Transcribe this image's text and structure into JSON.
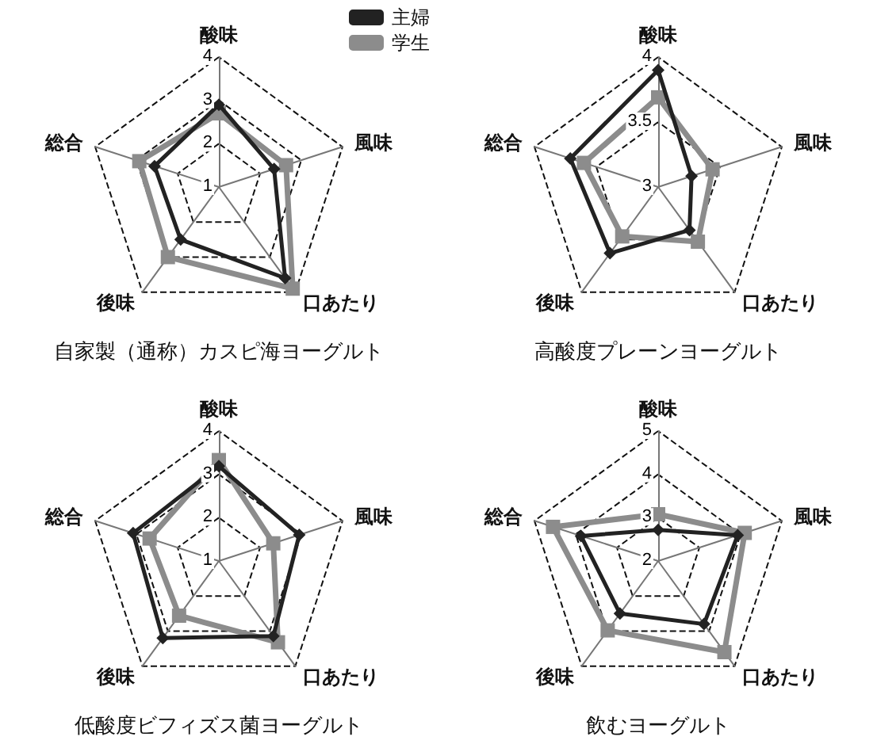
{
  "chart_data": [
    {
      "type": "radar",
      "title": "自家製（通称）カスピ海ヨーグルト",
      "categories": [
        "酸味",
        "風味",
        "口あたり",
        "後味",
        "総合"
      ],
      "ylim": [
        1,
        4
      ],
      "yticks": [
        1,
        2,
        3,
        4
      ],
      "legend": "top right",
      "series": [
        {
          "name": "主婦",
          "color": "#222222",
          "marker": "diamond",
          "values": [
            2.9,
            2.34,
            3.6,
            2.5,
            2.56
          ]
        },
        {
          "name": "学生",
          "color": "#8c8c8c",
          "marker": "square",
          "values": [
            2.7,
            2.63,
            3.9,
            3.0,
            2.93
          ]
        }
      ]
    },
    {
      "type": "radar",
      "title": "高酸度プレーンヨーグルト",
      "categories": [
        "酸味",
        "風味",
        "口あたり",
        "後味",
        "総合"
      ],
      "ylim": [
        3,
        4
      ],
      "yticks": [
        3,
        3.5,
        4
      ],
      "series": [
        {
          "color": "#222222",
          "marker": "diamond",
          "values": [
            3.9,
            3.27,
            3.41,
            3.63,
            3.71
          ]
        },
        {
          "color": "#8c8c8c",
          "marker": "square",
          "values": [
            3.69,
            3.44,
            3.52,
            3.47,
            3.6
          ]
        }
      ]
    },
    {
      "type": "radar",
      "title": "低酸度ビフィズス菌ヨーグルト",
      "categories": [
        "酸味",
        "風味",
        "口あたり",
        "後味",
        "総合"
      ],
      "ylim": [
        1,
        4
      ],
      "yticks": [
        1,
        2,
        3,
        4
      ],
      "series": [
        {
          "color": "#222222",
          "marker": "diamond",
          "values": [
            3.19,
            2.95,
            3.14,
            3.2,
            3.08
          ]
        },
        {
          "color": "#8c8c8c",
          "marker": "square",
          "values": [
            3.33,
            2.32,
            3.32,
            2.56,
            2.68
          ]
        }
      ]
    },
    {
      "type": "radar",
      "title": "飲むヨーグルト",
      "categories": [
        "酸味",
        "風味",
        "口あたり",
        "後味",
        "総合"
      ],
      "ylim": [
        2,
        5
      ],
      "yticks": [
        2,
        3,
        4,
        5
      ],
      "series": [
        {
          "color": "#222222",
          "marker": "diamond",
          "values": [
            2.72,
            3.93,
            3.8,
            3.5,
            3.87
          ]
        },
        {
          "color": "#8c8c8c",
          "marker": "square",
          "values": [
            3.08,
            4.1,
            4.6,
            3.98,
            4.55
          ]
        }
      ]
    }
  ]
}
